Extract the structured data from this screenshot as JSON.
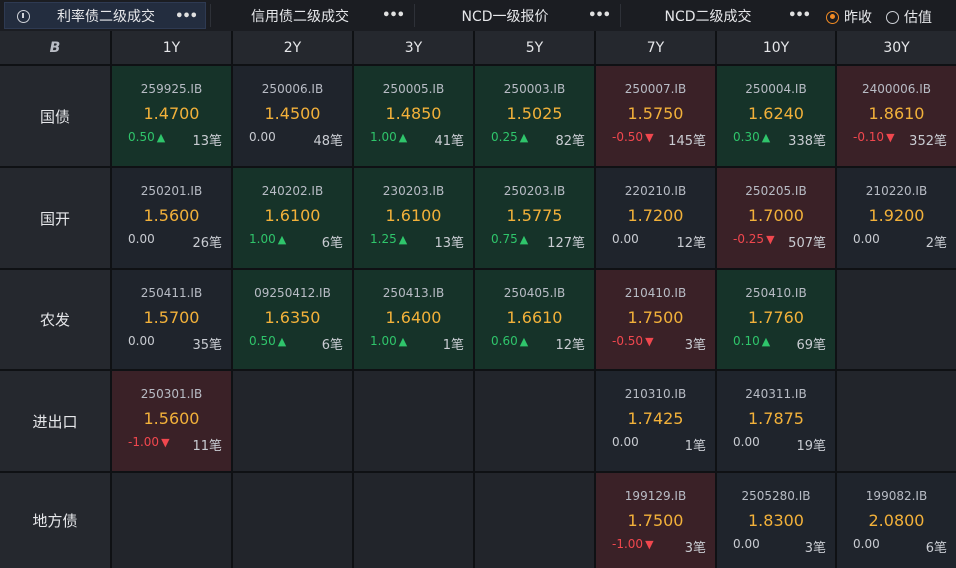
{
  "tabs": [
    {
      "label": "利率债二级成交",
      "active": true
    },
    {
      "label": "信用债二级成交",
      "active": false
    },
    {
      "label": "NCD一级报价",
      "active": false
    },
    {
      "label": "NCD二级成交",
      "active": false
    }
  ],
  "tab_menu": "•••",
  "radios": [
    {
      "label": "昨收",
      "checked": true
    },
    {
      "label": "估值",
      "checked": false
    }
  ],
  "corner_logo": "B",
  "columns": [
    "1Y",
    "2Y",
    "3Y",
    "5Y",
    "7Y",
    "10Y",
    "30Y"
  ],
  "rows": [
    {
      "label": "国债",
      "cells": [
        {
          "code": "259925.IB",
          "price": "1.4700",
          "change": "0.50",
          "dir": "up",
          "count": "13笔"
        },
        {
          "code": "250006.IB",
          "price": "1.4500",
          "change": "0.00",
          "dir": "flat",
          "count": "48笔"
        },
        {
          "code": "250005.IB",
          "price": "1.4850",
          "change": "1.00",
          "dir": "up",
          "count": "41笔"
        },
        {
          "code": "250003.IB",
          "price": "1.5025",
          "change": "0.25",
          "dir": "up",
          "count": "82笔"
        },
        {
          "code": "250007.IB",
          "price": "1.5750",
          "change": "-0.50",
          "dir": "down",
          "count": "145笔"
        },
        {
          "code": "250004.IB",
          "price": "1.6240",
          "change": "0.30",
          "dir": "up",
          "count": "338笔"
        },
        {
          "code": "2400006.IB",
          "price": "1.8610",
          "change": "-0.10",
          "dir": "down",
          "count": "352笔"
        }
      ]
    },
    {
      "label": "国开",
      "cells": [
        {
          "code": "250201.IB",
          "price": "1.5600",
          "change": "0.00",
          "dir": "flat",
          "count": "26笔"
        },
        {
          "code": "240202.IB",
          "price": "1.6100",
          "change": "1.00",
          "dir": "up",
          "count": "6笔"
        },
        {
          "code": "230203.IB",
          "price": "1.6100",
          "change": "1.25",
          "dir": "up",
          "count": "13笔"
        },
        {
          "code": "250203.IB",
          "price": "1.5775",
          "change": "0.75",
          "dir": "up",
          "count": "127笔"
        },
        {
          "code": "220210.IB",
          "price": "1.7200",
          "change": "0.00",
          "dir": "flat",
          "count": "12笔"
        },
        {
          "code": "250205.IB",
          "price": "1.7000",
          "change": "-0.25",
          "dir": "down",
          "count": "507笔"
        },
        {
          "code": "210220.IB",
          "price": "1.9200",
          "change": "0.00",
          "dir": "flat",
          "count": "2笔"
        }
      ]
    },
    {
      "label": "农发",
      "cells": [
        {
          "code": "250411.IB",
          "price": "1.5700",
          "change": "0.00",
          "dir": "flat",
          "count": "35笔"
        },
        {
          "code": "09250412.IB",
          "price": "1.6350",
          "change": "0.50",
          "dir": "up",
          "count": "6笔"
        },
        {
          "code": "250413.IB",
          "price": "1.6400",
          "change": "1.00",
          "dir": "up",
          "count": "1笔"
        },
        {
          "code": "250405.IB",
          "price": "1.6610",
          "change": "0.60",
          "dir": "up",
          "count": "12笔"
        },
        {
          "code": "210410.IB",
          "price": "1.7500",
          "change": "-0.50",
          "dir": "down",
          "count": "3笔"
        },
        {
          "code": "250410.IB",
          "price": "1.7760",
          "change": "0.10",
          "dir": "up",
          "count": "69笔"
        },
        null
      ]
    },
    {
      "label": "进出口",
      "cells": [
        {
          "code": "250301.IB",
          "price": "1.5600",
          "change": "-1.00",
          "dir": "down",
          "count": "11笔"
        },
        null,
        null,
        null,
        {
          "code": "210310.IB",
          "price": "1.7425",
          "change": "0.00",
          "dir": "flat",
          "count": "1笔"
        },
        {
          "code": "240311.IB",
          "price": "1.7875",
          "change": "0.00",
          "dir": "flat",
          "count": "19笔"
        },
        null
      ]
    },
    {
      "label": "地方债",
      "cells": [
        null,
        null,
        null,
        null,
        {
          "code": "199129.IB",
          "price": "1.7500",
          "change": "-1.00",
          "dir": "down",
          "count": "3笔"
        },
        {
          "code": "2505280.IB",
          "price": "1.8300",
          "change": "0.00",
          "dir": "flat",
          "count": "3笔"
        },
        {
          "code": "199082.IB",
          "price": "2.0800",
          "change": "0.00",
          "dir": "flat",
          "count": "6笔"
        }
      ]
    }
  ],
  "colors": {
    "up": "#2fc56b",
    "down": "#f0474e",
    "price": "#f2b13a",
    "radio_accent": "#f08a24"
  }
}
